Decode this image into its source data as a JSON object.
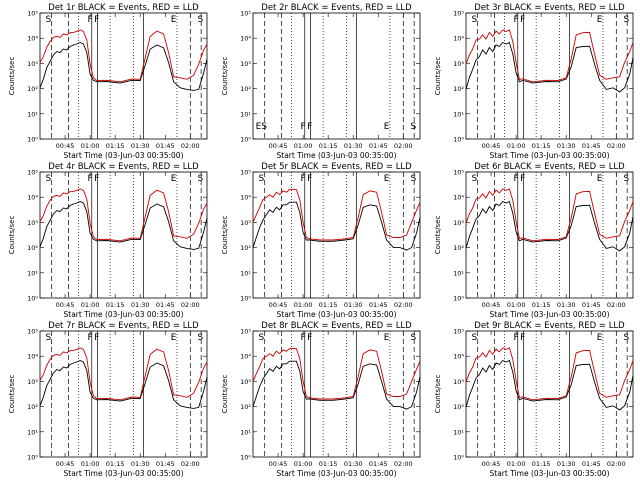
{
  "chart_data": [
    {
      "type": "line",
      "title": "Det 1r BLACK = Events, RED = LLD",
      "xlabel": "Start Time (03-Jun-03 00:35:00)",
      "ylabel": "Counts/sec",
      "x_tick_labels": [
        "00:45",
        "01:00",
        "01:15",
        "01:30",
        "01:45",
        "02:00"
      ],
      "y_tick_labels": [
        "10⁰",
        "10¹",
        "10²",
        "10³",
        "10⁴",
        "10⁵"
      ],
      "ylim": [
        1,
        100000
      ],
      "y_scale": "log",
      "has_data": true,
      "markers": [
        "S",
        "F",
        "F",
        "E",
        "S"
      ],
      "series": [
        {
          "name": "Events",
          "color": "#000000"
        },
        {
          "name": "LLD",
          "color": "#cc0000"
        }
      ]
    },
    {
      "type": "line",
      "title": "Det 2r BLACK = Events, RED = LLD",
      "xlabel": "Start Time (03-Jun-03 00:35:00)",
      "ylabel": "Counts/sec",
      "x_tick_labels": [
        "00:45",
        "01:00",
        "01:15",
        "01:30",
        "01:45",
        "02:00"
      ],
      "y_tick_labels": [
        "10⁰",
        "10¹",
        "10²",
        "10³",
        "10⁴",
        "10⁵"
      ],
      "ylim": [
        1,
        100000
      ],
      "y_scale": "log",
      "has_data": false,
      "markers": [
        "ES",
        "F",
        "F",
        "E",
        "S"
      ],
      "series": []
    },
    {
      "type": "line",
      "title": "Det 3r BLACK = Events, RED = LLD",
      "xlabel": "Start Time (03-Jun-03 00:35:00)",
      "ylabel": "Counts/sec",
      "x_tick_labels": [
        "00:45",
        "01:00",
        "01:15",
        "01:30",
        "01:45",
        "02:00"
      ],
      "y_tick_labels": [
        "10⁰",
        "10¹",
        "10²",
        "10³",
        "10⁴",
        "10⁵"
      ],
      "ylim": [
        1,
        100000
      ],
      "y_scale": "log",
      "has_data": true,
      "markers": [
        "S",
        "F",
        "F",
        "E",
        "S"
      ],
      "series": [
        {
          "name": "Events",
          "color": "#000000"
        },
        {
          "name": "LLD",
          "color": "#cc0000"
        }
      ]
    },
    {
      "type": "line",
      "title": "Det 4r BLACK = Events, RED = LLD",
      "xlabel": "Start Time (03-Jun-03 00:35:00)",
      "ylabel": "Counts/sec",
      "x_tick_labels": [
        "00:45",
        "01:00",
        "01:15",
        "01:30",
        "01:45",
        "02:00"
      ],
      "y_tick_labels": [
        "10⁰",
        "10¹",
        "10²",
        "10³",
        "10⁴",
        "10⁵"
      ],
      "ylim": [
        1,
        100000
      ],
      "y_scale": "log",
      "has_data": true,
      "markers": [
        "S",
        "F",
        "F",
        "E",
        "S"
      ],
      "series": [
        {
          "name": "Events",
          "color": "#000000"
        },
        {
          "name": "LLD",
          "color": "#cc0000"
        }
      ]
    },
    {
      "type": "line",
      "title": "Det 5r BLACK = Events, RED = LLD",
      "xlabel": "Start Time (03-Jun-03 00:35:00)",
      "ylabel": "Counts/sec",
      "x_tick_labels": [
        "00:45",
        "01:00",
        "01:15",
        "01:30",
        "01:45",
        "02:00"
      ],
      "y_tick_labels": [
        "10⁰",
        "10¹",
        "10²",
        "10³",
        "10⁴",
        "10⁵"
      ],
      "ylim": [
        1,
        100000
      ],
      "y_scale": "log",
      "has_data": true,
      "markers": [
        "S",
        "F",
        "F",
        "E",
        "S"
      ],
      "series": [
        {
          "name": "Events",
          "color": "#000000"
        },
        {
          "name": "LLD",
          "color": "#cc0000"
        }
      ]
    },
    {
      "type": "line",
      "title": "Det 6r BLACK = Events, RED = LLD",
      "xlabel": "Start Time (03-Jun-03 00:35:00)",
      "ylabel": "Counts/sec",
      "x_tick_labels": [
        "00:45",
        "01:00",
        "01:15",
        "01:30",
        "01:45",
        "02:00"
      ],
      "y_tick_labels": [
        "10⁰",
        "10¹",
        "10²",
        "10³",
        "10⁴",
        "10⁵"
      ],
      "ylim": [
        1,
        100000
      ],
      "y_scale": "log",
      "has_data": true,
      "markers": [
        "S",
        "F",
        "F",
        "E",
        "S"
      ],
      "series": [
        {
          "name": "Events",
          "color": "#000000"
        },
        {
          "name": "LLD",
          "color": "#cc0000"
        }
      ]
    },
    {
      "type": "line",
      "title": "Det 7r BLACK = Events, RED = LLD",
      "xlabel": "Start Time (03-Jun-03 00:35:00)",
      "ylabel": "Counts/sec",
      "x_tick_labels": [
        "00:45",
        "01:00",
        "01:15",
        "01:30",
        "01:45",
        "02:00"
      ],
      "y_tick_labels": [
        "10⁰",
        "10¹",
        "10²",
        "10³",
        "10⁴",
        "10⁵"
      ],
      "ylim": [
        1,
        100000
      ],
      "y_scale": "log",
      "has_data": true,
      "markers": [
        "S",
        "F",
        "F",
        "E",
        "S"
      ],
      "series": [
        {
          "name": "Events",
          "color": "#000000"
        },
        {
          "name": "LLD",
          "color": "#cc0000"
        }
      ]
    },
    {
      "type": "line",
      "title": "Det 8r BLACK = Events, RED = LLD",
      "xlabel": "Start Time (03-Jun-03 00:35:00)",
      "ylabel": "Counts/sec",
      "x_tick_labels": [
        "00:45",
        "01:00",
        "01:15",
        "01:30",
        "01:45",
        "02:00"
      ],
      "y_tick_labels": [
        "10⁰",
        "10¹",
        "10²",
        "10³",
        "10⁴",
        "10⁵"
      ],
      "ylim": [
        1,
        100000
      ],
      "y_scale": "log",
      "has_data": true,
      "markers": [
        "S",
        "F",
        "F",
        "E",
        "S"
      ],
      "series": [
        {
          "name": "Events",
          "color": "#000000"
        },
        {
          "name": "LLD",
          "color": "#cc0000"
        }
      ]
    },
    {
      "type": "line",
      "title": "Det 9r BLACK = Events, RED = LLD",
      "xlabel": "Start Time (03-Jun-03 00:35:00)",
      "ylabel": "Counts/sec",
      "x_tick_labels": [
        "00:45",
        "01:00",
        "01:15",
        "01:30",
        "01:45",
        "02:00"
      ],
      "y_tick_labels": [
        "10⁰",
        "10¹",
        "10²",
        "10³",
        "10⁴",
        "10⁵"
      ],
      "ylim": [
        1,
        100000
      ],
      "y_scale": "log",
      "has_data": true,
      "markers": [
        "S",
        "F",
        "F",
        "E",
        "S"
      ],
      "series": [
        {
          "name": "Events",
          "color": "#000000"
        },
        {
          "name": "LLD",
          "color": "#cc0000"
        }
      ]
    }
  ]
}
